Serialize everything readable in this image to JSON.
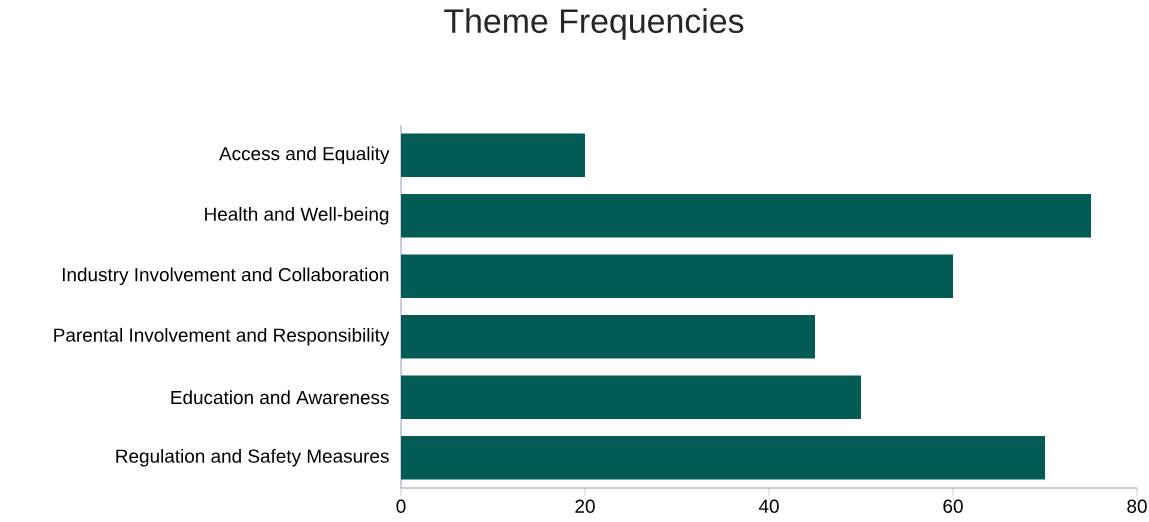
{
  "chart_data": {
    "type": "bar",
    "orientation": "horizontal",
    "title": "Theme Frequencies",
    "categories": [
      "Access and Equality",
      "Health and Well-being",
      "Industry Involvement and Collaboration",
      "Parental Involvement and Responsibility",
      "Education and Awareness",
      "Regulation and Safety Measures"
    ],
    "values": [
      20,
      75,
      60,
      45,
      50,
      70
    ],
    "color": "#025c55",
    "xlim": [
      0,
      80
    ],
    "xticks": [
      0,
      20,
      40,
      60,
      80
    ]
  }
}
